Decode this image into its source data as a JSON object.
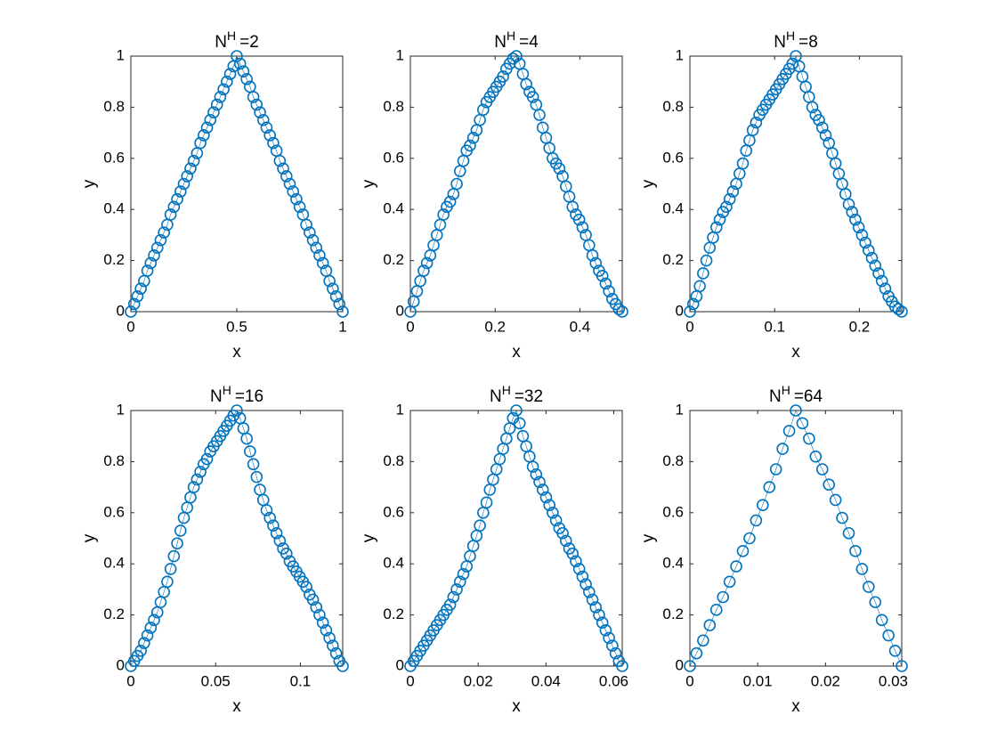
{
  "chart_data": [
    {
      "type": "line",
      "title": "N",
      "title_sup": "H",
      "title_suffix": "=2",
      "xlabel": "x",
      "ylabel": "y",
      "color": "#0072bd",
      "x": [
        0,
        0.0156,
        0.0313,
        0.0469,
        0.0625,
        0.0781,
        0.0938,
        0.1094,
        0.125,
        0.1406,
        0.1563,
        0.1719,
        0.1875,
        0.2031,
        0.2188,
        0.2344,
        0.25,
        0.2656,
        0.2813,
        0.2969,
        0.3125,
        0.3281,
        0.3438,
        0.3594,
        0.375,
        0.3906,
        0.4063,
        0.4219,
        0.4375,
        0.4531,
        0.4688,
        0.4844,
        0.5,
        0.5156,
        0.5313,
        0.5469,
        0.5625,
        0.5781,
        0.5938,
        0.6094,
        0.625,
        0.6406,
        0.6563,
        0.6719,
        0.6875,
        0.7031,
        0.7188,
        0.7344,
        0.75,
        0.7656,
        0.7813,
        0.7969,
        0.8125,
        0.8281,
        0.8438,
        0.8594,
        0.875,
        0.8906,
        0.9063,
        0.9219,
        0.9375,
        0.9531,
        0.9688,
        0.9844,
        1
      ],
      "values": [
        0,
        0.03,
        0.06,
        0.09,
        0.12,
        0.16,
        0.19,
        0.22,
        0.25,
        0.28,
        0.31,
        0.34,
        0.38,
        0.41,
        0.44,
        0.47,
        0.5,
        0.53,
        0.56,
        0.59,
        0.62,
        0.66,
        0.69,
        0.72,
        0.75,
        0.78,
        0.81,
        0.84,
        0.87,
        0.9,
        0.93,
        0.96,
        1.0,
        0.97,
        0.94,
        0.91,
        0.88,
        0.84,
        0.81,
        0.78,
        0.75,
        0.72,
        0.69,
        0.66,
        0.63,
        0.59,
        0.56,
        0.53,
        0.5,
        0.47,
        0.44,
        0.41,
        0.38,
        0.34,
        0.31,
        0.28,
        0.25,
        0.22,
        0.19,
        0.16,
        0.12,
        0.09,
        0.06,
        0.03,
        0
      ],
      "xlim": [
        0,
        1
      ],
      "xticks": [
        0,
        0.5,
        1
      ],
      "ylim": [
        0,
        1
      ],
      "yticks": [
        0,
        0.2,
        0.4,
        0.6,
        0.8,
        1
      ]
    },
    {
      "type": "line",
      "title": "N",
      "title_sup": "H",
      "title_suffix": "=4",
      "xlabel": "x",
      "ylabel": "y",
      "color": "#0072bd",
      "x": [
        0,
        0.0078,
        0.0156,
        0.0234,
        0.0313,
        0.0391,
        0.0469,
        0.0547,
        0.0625,
        0.0703,
        0.0781,
        0.0859,
        0.0938,
        0.1016,
        0.1094,
        0.1172,
        0.125,
        0.1328,
        0.1406,
        0.1484,
        0.1563,
        0.1641,
        0.1719,
        0.1797,
        0.1875,
        0.1953,
        0.2031,
        0.2109,
        0.2188,
        0.2266,
        0.2344,
        0.2422,
        0.25,
        0.2578,
        0.2656,
        0.2734,
        0.2813,
        0.2891,
        0.2969,
        0.3047,
        0.3125,
        0.3203,
        0.3281,
        0.3359,
        0.3438,
        0.3516,
        0.3594,
        0.3672,
        0.375,
        0.3828,
        0.3906,
        0.3984,
        0.4063,
        0.4141,
        0.4219,
        0.4297,
        0.4375,
        0.4453,
        0.4531,
        0.4609,
        0.4688,
        0.4766,
        0.4844,
        0.4922,
        0.5
      ],
      "values": [
        0,
        0.04,
        0.08,
        0.12,
        0.16,
        0.19,
        0.22,
        0.26,
        0.3,
        0.34,
        0.38,
        0.41,
        0.43,
        0.46,
        0.5,
        0.55,
        0.59,
        0.63,
        0.65,
        0.68,
        0.71,
        0.75,
        0.79,
        0.82,
        0.84,
        0.86,
        0.88,
        0.9,
        0.92,
        0.95,
        0.97,
        0.99,
        1,
        0.97,
        0.93,
        0.89,
        0.86,
        0.84,
        0.81,
        0.77,
        0.72,
        0.68,
        0.64,
        0.6,
        0.58,
        0.56,
        0.53,
        0.49,
        0.45,
        0.41,
        0.38,
        0.36,
        0.33,
        0.3,
        0.26,
        0.22,
        0.19,
        0.16,
        0.14,
        0.11,
        0.08,
        0.05,
        0.03,
        0.01,
        0
      ],
      "xlim": [
        0,
        0.5
      ],
      "xticks": [
        0,
        0.2,
        0.4
      ],
      "ylim": [
        0,
        1
      ],
      "yticks": [
        0,
        0.2,
        0.4,
        0.6,
        0.8,
        1
      ]
    },
    {
      "type": "line",
      "title": "N",
      "title_sup": "H",
      "title_suffix": "=8",
      "xlabel": "x",
      "ylabel": "y",
      "color": "#0072bd",
      "x": [
        0,
        0.0039,
        0.0078,
        0.0117,
        0.0156,
        0.0195,
        0.0234,
        0.0273,
        0.0313,
        0.0352,
        0.0391,
        0.043,
        0.0469,
        0.0508,
        0.0547,
        0.0586,
        0.0625,
        0.0664,
        0.0703,
        0.0742,
        0.0781,
        0.082,
        0.0859,
        0.0898,
        0.0938,
        0.0977,
        0.1016,
        0.1055,
        0.1094,
        0.1133,
        0.1172,
        0.1211,
        0.125,
        0.1289,
        0.1328,
        0.1367,
        0.1406,
        0.1445,
        0.1484,
        0.1523,
        0.1563,
        0.1602,
        0.1641,
        0.168,
        0.1719,
        0.1758,
        0.1797,
        0.1836,
        0.1875,
        0.1914,
        0.1953,
        0.1992,
        0.2031,
        0.207,
        0.2109,
        0.2148,
        0.2188,
        0.2227,
        0.2266,
        0.2305,
        0.2344,
        0.2383,
        0.2422,
        0.2461,
        0.25
      ],
      "values": [
        0,
        0.03,
        0.06,
        0.1,
        0.15,
        0.2,
        0.25,
        0.29,
        0.33,
        0.36,
        0.39,
        0.41,
        0.44,
        0.47,
        0.5,
        0.54,
        0.58,
        0.63,
        0.67,
        0.71,
        0.74,
        0.77,
        0.79,
        0.81,
        0.83,
        0.85,
        0.87,
        0.89,
        0.91,
        0.93,
        0.95,
        0.97,
        1,
        0.96,
        0.92,
        0.88,
        0.84,
        0.8,
        0.77,
        0.75,
        0.72,
        0.69,
        0.66,
        0.62,
        0.58,
        0.54,
        0.5,
        0.46,
        0.42,
        0.39,
        0.36,
        0.33,
        0.3,
        0.27,
        0.24,
        0.21,
        0.18,
        0.15,
        0.12,
        0.09,
        0.06,
        0.04,
        0.02,
        0.01,
        0
      ],
      "xlim": [
        0,
        0.25
      ],
      "xticks": [
        0,
        0.1,
        0.2
      ],
      "ylim": [
        0,
        1
      ],
      "yticks": [
        0,
        0.2,
        0.4,
        0.6,
        0.8,
        1
      ]
    },
    {
      "type": "line",
      "title": "N",
      "title_sup": "H",
      "title_suffix": "=16",
      "xlabel": "x",
      "ylabel": "y",
      "color": "#0072bd",
      "x": [
        0,
        0.00195,
        0.00391,
        0.00586,
        0.00781,
        0.00977,
        0.01172,
        0.01367,
        0.01563,
        0.01758,
        0.01953,
        0.02148,
        0.02344,
        0.02539,
        0.02734,
        0.0293,
        0.03125,
        0.0332,
        0.03516,
        0.03711,
        0.03906,
        0.04102,
        0.04297,
        0.04492,
        0.04688,
        0.04883,
        0.05078,
        0.05273,
        0.05469,
        0.05664,
        0.05859,
        0.06055,
        0.0625,
        0.06445,
        0.06641,
        0.06836,
        0.07031,
        0.07227,
        0.07422,
        0.07617,
        0.07813,
        0.08008,
        0.08203,
        0.08398,
        0.08594,
        0.08789,
        0.08984,
        0.0918,
        0.09375,
        0.0957,
        0.09766,
        0.09961,
        0.10156,
        0.10352,
        0.10547,
        0.10742,
        0.10938,
        0.11133,
        0.11328,
        0.11523,
        0.11719,
        0.11914,
        0.12109,
        0.12305,
        0.125
      ],
      "values": [
        0,
        0.02,
        0.04,
        0.06,
        0.09,
        0.12,
        0.15,
        0.18,
        0.21,
        0.25,
        0.29,
        0.33,
        0.38,
        0.43,
        0.48,
        0.53,
        0.58,
        0.62,
        0.66,
        0.7,
        0.73,
        0.76,
        0.79,
        0.81,
        0.84,
        0.86,
        0.88,
        0.9,
        0.92,
        0.94,
        0.96,
        0.98,
        1,
        0.97,
        0.93,
        0.89,
        0.84,
        0.79,
        0.74,
        0.69,
        0.65,
        0.61,
        0.58,
        0.55,
        0.52,
        0.49,
        0.46,
        0.44,
        0.41,
        0.39,
        0.37,
        0.35,
        0.33,
        0.31,
        0.28,
        0.26,
        0.23,
        0.2,
        0.17,
        0.14,
        0.11,
        0.08,
        0.05,
        0.02,
        0
      ],
      "xlim": [
        0,
        0.125
      ],
      "xticks": [
        0,
        0.05,
        0.1
      ],
      "ylim": [
        0,
        1
      ],
      "yticks": [
        0,
        0.2,
        0.4,
        0.6,
        0.8,
        1
      ]
    },
    {
      "type": "line",
      "title": "N",
      "title_sup": "H",
      "title_suffix": "=32",
      "xlabel": "x",
      "ylabel": "y",
      "color": "#0072bd",
      "x": [
        0,
        0.000977,
        0.001953,
        0.00293,
        0.003906,
        0.004883,
        0.005859,
        0.006836,
        0.007813,
        0.008789,
        0.009766,
        0.010742,
        0.011719,
        0.012695,
        0.013672,
        0.014648,
        0.015625,
        0.016602,
        0.017578,
        0.018555,
        0.019531,
        0.020508,
        0.021484,
        0.022461,
        0.023438,
        0.024414,
        0.025391,
        0.026367,
        0.027344,
        0.02832,
        0.029297,
        0.030273,
        0.03125,
        0.032227,
        0.033203,
        0.03418,
        0.035156,
        0.036133,
        0.037109,
        0.038086,
        0.039063,
        0.040039,
        0.041016,
        0.041992,
        0.042969,
        0.043945,
        0.044922,
        0.045898,
        0.046875,
        0.047852,
        0.048828,
        0.049805,
        0.050781,
        0.051758,
        0.052734,
        0.053711,
        0.054688,
        0.055664,
        0.056641,
        0.057617,
        0.058594,
        0.05957,
        0.060547,
        0.061523,
        0.0625
      ],
      "values": [
        0,
        0.02,
        0.04,
        0.06,
        0.08,
        0.1,
        0.12,
        0.14,
        0.16,
        0.18,
        0.2,
        0.22,
        0.24,
        0.27,
        0.3,
        0.33,
        0.36,
        0.39,
        0.43,
        0.47,
        0.51,
        0.55,
        0.6,
        0.64,
        0.69,
        0.73,
        0.77,
        0.81,
        0.85,
        0.89,
        0.93,
        0.97,
        1,
        0.95,
        0.9,
        0.86,
        0.82,
        0.78,
        0.75,
        0.72,
        0.69,
        0.66,
        0.63,
        0.6,
        0.57,
        0.54,
        0.52,
        0.49,
        0.46,
        0.44,
        0.41,
        0.38,
        0.35,
        0.32,
        0.29,
        0.26,
        0.23,
        0.2,
        0.17,
        0.14,
        0.11,
        0.08,
        0.05,
        0.02,
        0
      ],
      "xlim": [
        0,
        0.0625
      ],
      "xticks": [
        0,
        0.02,
        0.04,
        0.06
      ],
      "ylim": [
        0,
        1
      ],
      "yticks": [
        0,
        0.2,
        0.4,
        0.6,
        0.8,
        1
      ]
    },
    {
      "type": "line",
      "title": "N",
      "title_sup": "H",
      "title_suffix": "=64",
      "xlabel": "x",
      "ylabel": "y",
      "color": "#0072bd",
      "x": [
        0,
        0.000977,
        0.001953,
        0.00293,
        0.003906,
        0.004883,
        0.005859,
        0.006836,
        0.007813,
        0.008789,
        0.009766,
        0.010742,
        0.011719,
        0.012695,
        0.013672,
        0.014648,
        0.015625,
        0.016602,
        0.017578,
        0.018555,
        0.019531,
        0.020508,
        0.021484,
        0.022461,
        0.023438,
        0.024414,
        0.025391,
        0.026367,
        0.027344,
        0.02832,
        0.029297,
        0.030273,
        0.03125
      ],
      "values": [
        0,
        0.05,
        0.1,
        0.16,
        0.22,
        0.27,
        0.33,
        0.39,
        0.45,
        0.5,
        0.57,
        0.63,
        0.7,
        0.77,
        0.85,
        0.92,
        1,
        0.95,
        0.89,
        0.82,
        0.77,
        0.71,
        0.65,
        0.58,
        0.52,
        0.45,
        0.38,
        0.31,
        0.25,
        0.18,
        0.12,
        0.06,
        0
      ],
      "xlim": [
        0,
        0.03125
      ],
      "xticks": [
        0,
        0.01,
        0.02,
        0.03
      ],
      "ylim": [
        0,
        1
      ],
      "yticks": [
        0,
        0.2,
        0.4,
        0.6,
        0.8,
        1
      ]
    }
  ]
}
